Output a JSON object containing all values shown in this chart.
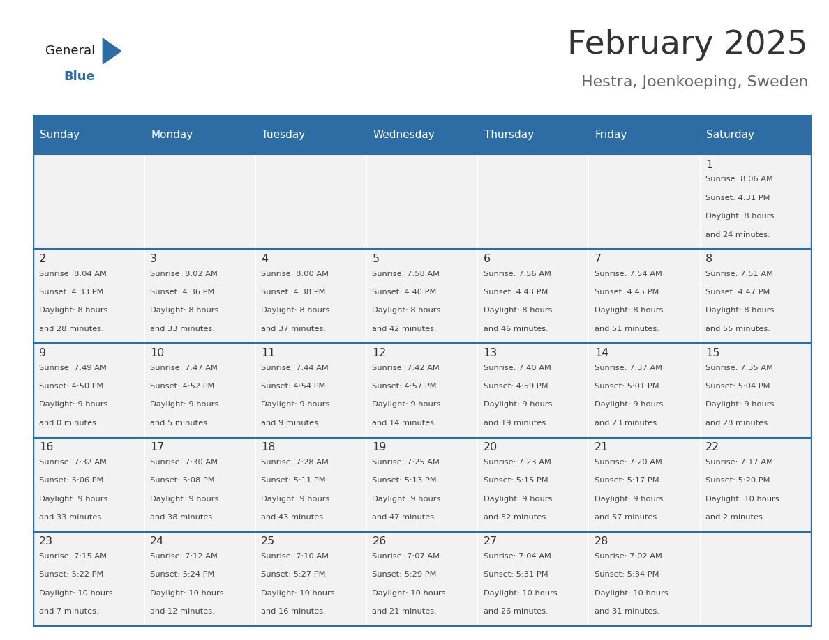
{
  "title": "February 2025",
  "subtitle": "Hestra, Joenkoeping, Sweden",
  "header_bg": "#2E6DA4",
  "header_text_color": "#FFFFFF",
  "day_headers": [
    "Sunday",
    "Monday",
    "Tuesday",
    "Wednesday",
    "Thursday",
    "Friday",
    "Saturday"
  ],
  "days": [
    {
      "day": 1,
      "col": 6,
      "row": 0,
      "sunrise": "8:06 AM",
      "sunset": "4:31 PM",
      "daylight": "8 hours and 24 minutes."
    },
    {
      "day": 2,
      "col": 0,
      "row": 1,
      "sunrise": "8:04 AM",
      "sunset": "4:33 PM",
      "daylight": "8 hours and 28 minutes."
    },
    {
      "day": 3,
      "col": 1,
      "row": 1,
      "sunrise": "8:02 AM",
      "sunset": "4:36 PM",
      "daylight": "8 hours and 33 minutes."
    },
    {
      "day": 4,
      "col": 2,
      "row": 1,
      "sunrise": "8:00 AM",
      "sunset": "4:38 PM",
      "daylight": "8 hours and 37 minutes."
    },
    {
      "day": 5,
      "col": 3,
      "row": 1,
      "sunrise": "7:58 AM",
      "sunset": "4:40 PM",
      "daylight": "8 hours and 42 minutes."
    },
    {
      "day": 6,
      "col": 4,
      "row": 1,
      "sunrise": "7:56 AM",
      "sunset": "4:43 PM",
      "daylight": "8 hours and 46 minutes."
    },
    {
      "day": 7,
      "col": 5,
      "row": 1,
      "sunrise": "7:54 AM",
      "sunset": "4:45 PM",
      "daylight": "8 hours and 51 minutes."
    },
    {
      "day": 8,
      "col": 6,
      "row": 1,
      "sunrise": "7:51 AM",
      "sunset": "4:47 PM",
      "daylight": "8 hours and 55 minutes."
    },
    {
      "day": 9,
      "col": 0,
      "row": 2,
      "sunrise": "7:49 AM",
      "sunset": "4:50 PM",
      "daylight": "9 hours and 0 minutes."
    },
    {
      "day": 10,
      "col": 1,
      "row": 2,
      "sunrise": "7:47 AM",
      "sunset": "4:52 PM",
      "daylight": "9 hours and 5 minutes."
    },
    {
      "day": 11,
      "col": 2,
      "row": 2,
      "sunrise": "7:44 AM",
      "sunset": "4:54 PM",
      "daylight": "9 hours and 9 minutes."
    },
    {
      "day": 12,
      "col": 3,
      "row": 2,
      "sunrise": "7:42 AM",
      "sunset": "4:57 PM",
      "daylight": "9 hours and 14 minutes."
    },
    {
      "day": 13,
      "col": 4,
      "row": 2,
      "sunrise": "7:40 AM",
      "sunset": "4:59 PM",
      "daylight": "9 hours and 19 minutes."
    },
    {
      "day": 14,
      "col": 5,
      "row": 2,
      "sunrise": "7:37 AM",
      "sunset": "5:01 PM",
      "daylight": "9 hours and 23 minutes."
    },
    {
      "day": 15,
      "col": 6,
      "row": 2,
      "sunrise": "7:35 AM",
      "sunset": "5:04 PM",
      "daylight": "9 hours and 28 minutes."
    },
    {
      "day": 16,
      "col": 0,
      "row": 3,
      "sunrise": "7:32 AM",
      "sunset": "5:06 PM",
      "daylight": "9 hours and 33 minutes."
    },
    {
      "day": 17,
      "col": 1,
      "row": 3,
      "sunrise": "7:30 AM",
      "sunset": "5:08 PM",
      "daylight": "9 hours and 38 minutes."
    },
    {
      "day": 18,
      "col": 2,
      "row": 3,
      "sunrise": "7:28 AM",
      "sunset": "5:11 PM",
      "daylight": "9 hours and 43 minutes."
    },
    {
      "day": 19,
      "col": 3,
      "row": 3,
      "sunrise": "7:25 AM",
      "sunset": "5:13 PM",
      "daylight": "9 hours and 47 minutes."
    },
    {
      "day": 20,
      "col": 4,
      "row": 3,
      "sunrise": "7:23 AM",
      "sunset": "5:15 PM",
      "daylight": "9 hours and 52 minutes."
    },
    {
      "day": 21,
      "col": 5,
      "row": 3,
      "sunrise": "7:20 AM",
      "sunset": "5:17 PM",
      "daylight": "9 hours and 57 minutes."
    },
    {
      "day": 22,
      "col": 6,
      "row": 3,
      "sunrise": "7:17 AM",
      "sunset": "5:20 PM",
      "daylight": "10 hours and 2 minutes."
    },
    {
      "day": 23,
      "col": 0,
      "row": 4,
      "sunrise": "7:15 AM",
      "sunset": "5:22 PM",
      "daylight": "10 hours and 7 minutes."
    },
    {
      "day": 24,
      "col": 1,
      "row": 4,
      "sunrise": "7:12 AM",
      "sunset": "5:24 PM",
      "daylight": "10 hours and 12 minutes."
    },
    {
      "day": 25,
      "col": 2,
      "row": 4,
      "sunrise": "7:10 AM",
      "sunset": "5:27 PM",
      "daylight": "10 hours and 16 minutes."
    },
    {
      "day": 26,
      "col": 3,
      "row": 4,
      "sunrise": "7:07 AM",
      "sunset": "5:29 PM",
      "daylight": "10 hours and 21 minutes."
    },
    {
      "day": 27,
      "col": 4,
      "row": 4,
      "sunrise": "7:04 AM",
      "sunset": "5:31 PM",
      "daylight": "10 hours and 26 minutes."
    },
    {
      "day": 28,
      "col": 5,
      "row": 4,
      "sunrise": "7:02 AM",
      "sunset": "5:34 PM",
      "daylight": "10 hours and 31 minutes."
    }
  ],
  "num_rows": 5,
  "num_cols": 7,
  "logo_triangle_color": "#2E6DA4",
  "title_color": "#333333",
  "subtitle_color": "#666666",
  "line_color": "#2E6DA4",
  "day_number_color": "#333333",
  "info_text_color": "#444444",
  "cell_bg": "#F2F2F2"
}
